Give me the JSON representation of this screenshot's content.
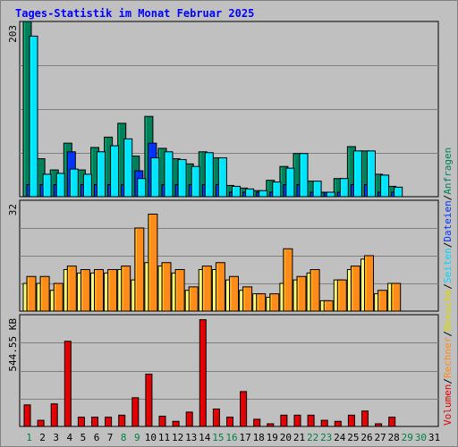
{
  "title": "Tages-Statistik im Monat Februar 2025",
  "colors": {
    "background": "#c0c0c0",
    "title": "#0000ff",
    "grid": "#808080",
    "weekday_label": "#000000",
    "weekend_label": "#008040",
    "anfragen": "#00805a",
    "dateien": "#0033ff",
    "seiten": "#00e5ff",
    "besuche": "#ffff66",
    "rechner": "#ff8c1a",
    "volumen": "#e00000"
  },
  "chart_data": [
    {
      "type": "bar",
      "panel": "top",
      "y_max_label": "203",
      "ylim": [
        0,
        203
      ],
      "grid": true,
      "x": [
        1,
        2,
        3,
        4,
        5,
        6,
        7,
        8,
        9,
        10,
        11,
        12,
        13,
        14,
        15,
        16,
        17,
        18,
        19,
        20,
        21,
        22,
        23,
        24,
        25,
        26,
        27,
        28,
        29,
        30,
        31
      ],
      "weekend_days": [
        1,
        8,
        9,
        15,
        16,
        22,
        23,
        29,
        30
      ],
      "series": [
        {
          "name": "Anfragen",
          "color": "#00805a",
          "values": [
            203,
            44,
            31,
            62,
            31,
            57,
            69,
            85,
            47,
            93,
            56,
            44,
            38,
            52,
            45,
            13,
            10,
            7,
            19,
            35,
            50,
            18,
            4,
            21,
            58,
            53,
            26,
            12,
            0,
            0,
            0
          ]
        },
        {
          "name": "Dateien",
          "color": "#0033ff",
          "values": [
            14,
            14,
            14,
            52,
            14,
            14,
            14,
            14,
            30,
            62,
            14,
            14,
            14,
            14,
            14,
            4,
            4,
            4,
            4,
            14,
            14,
            4,
            2,
            4,
            14,
            14,
            4,
            4,
            0,
            0,
            0
          ]
        },
        {
          "name": "Seiten",
          "color": "#00e5ff",
          "values": [
            186,
            26,
            27,
            32,
            26,
            52,
            59,
            67,
            21,
            45,
            52,
            43,
            35,
            51,
            45,
            12,
            9,
            7,
            17,
            33,
            50,
            18,
            4,
            21,
            53,
            53,
            25,
            11,
            0,
            0,
            0
          ]
        }
      ]
    },
    {
      "type": "bar",
      "panel": "middle",
      "y_max_label": "32",
      "ylim": [
        0,
        32
      ],
      "grid": true,
      "x": [
        1,
        2,
        3,
        4,
        5,
        6,
        7,
        8,
        9,
        10,
        11,
        12,
        13,
        14,
        15,
        16,
        17,
        18,
        19,
        20,
        21,
        22,
        23,
        24,
        25,
        26,
        27,
        28,
        29,
        30,
        31
      ],
      "series": [
        {
          "name": "Besuche",
          "color": "#ffff66",
          "values": [
            8,
            8,
            6,
            12,
            11,
            11,
            11,
            12,
            9,
            14,
            13,
            11,
            6,
            12,
            12,
            9,
            6,
            5,
            4,
            8,
            9,
            11,
            3,
            9,
            12,
            15,
            5,
            8,
            0,
            0,
            0
          ]
        },
        {
          "name": "Rechner",
          "color": "#ff8c1a",
          "values": [
            10,
            10,
            8,
            13,
            12,
            12,
            12,
            13,
            24,
            28,
            14,
            12,
            7,
            13,
            14,
            10,
            7,
            5,
            5,
            18,
            10,
            12,
            3,
            9,
            13,
            16,
            6,
            8,
            0,
            0,
            0
          ]
        }
      ]
    },
    {
      "type": "bar",
      "panel": "bottom",
      "y_max_label": "544.55 KB",
      "ylim": [
        0,
        544.55
      ],
      "grid": true,
      "x": [
        1,
        2,
        3,
        4,
        5,
        6,
        7,
        8,
        9,
        10,
        11,
        12,
        13,
        14,
        15,
        16,
        17,
        18,
        19,
        20,
        21,
        22,
        23,
        24,
        25,
        26,
        27,
        28,
        29,
        30,
        31
      ],
      "series": [
        {
          "name": "Volumen",
          "color": "#e00000",
          "values": [
            105,
            30,
            110,
            415,
            45,
            45,
            45,
            55,
            140,
            255,
            50,
            25,
            70,
            520,
            85,
            45,
            170,
            35,
            10,
            55,
            55,
            55,
            30,
            25,
            55,
            75,
            10,
            45,
            0,
            0,
            0
          ]
        }
      ]
    }
  ],
  "x_labels": [
    "1",
    "2",
    "3",
    "4",
    "5",
    "6",
    "7",
    "8",
    "9",
    "10",
    "11",
    "12",
    "13",
    "14",
    "15",
    "16",
    "17",
    "18",
    "19",
    "20",
    "21",
    "22",
    "23",
    "24",
    "25",
    "26",
    "27",
    "28",
    "29",
    "30",
    "31"
  ],
  "side_legend": [
    {
      "label": "Volumen",
      "color": "#e00000"
    },
    {
      "label": "/",
      "color": "#000000"
    },
    {
      "label": "Rechner",
      "color": "#ff8c1a"
    },
    {
      "label": "/",
      "color": "#000000"
    },
    {
      "label": "Besuche",
      "color": "#d8d800"
    },
    {
      "label": "/",
      "color": "#000000"
    },
    {
      "label": "Seiten",
      "color": "#00d8ff"
    },
    {
      "label": "/",
      "color": "#000000"
    },
    {
      "label": "Dateien",
      "color": "#0033ff"
    },
    {
      "label": "/",
      "color": "#000000"
    },
    {
      "label": "Anfragen",
      "color": "#00805a"
    }
  ]
}
